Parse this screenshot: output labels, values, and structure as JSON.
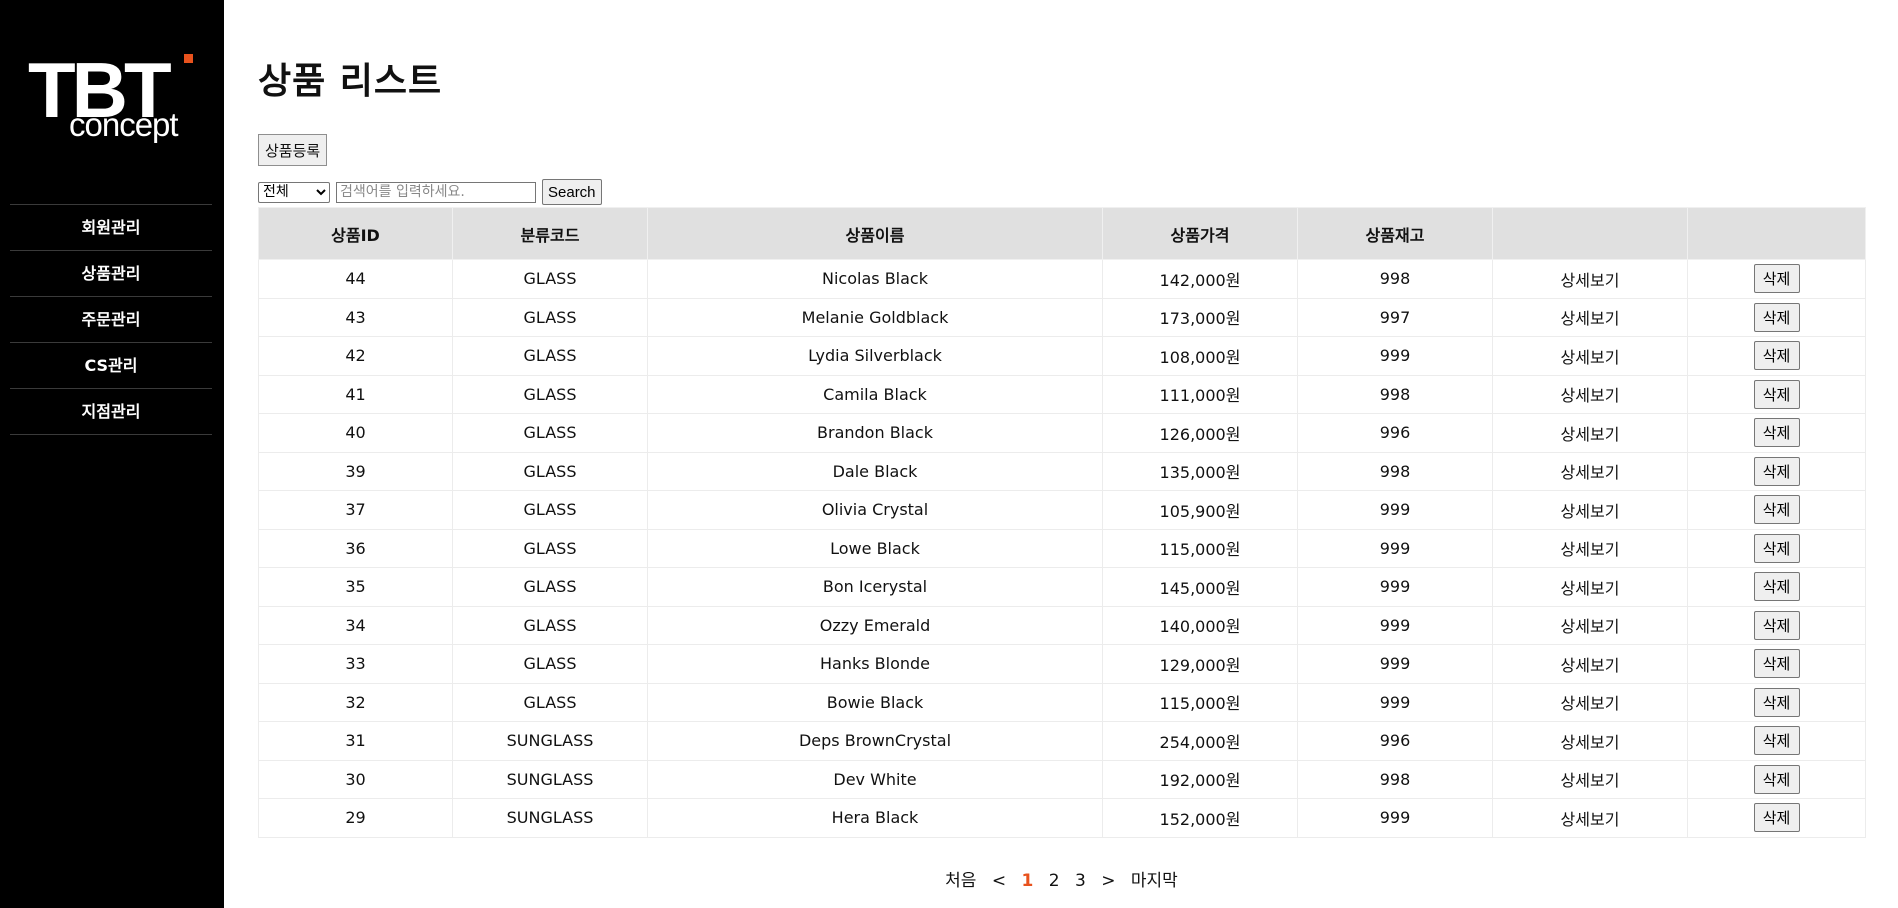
{
  "logo": {
    "main": "TBT",
    "sub": "concept",
    "accent": "#e8521d"
  },
  "nav": [
    "회원관리",
    "상품관리",
    "주문관리",
    "CS관리",
    "지점관리"
  ],
  "page_title": "상품 리스트",
  "add_button": "상품등록",
  "search": {
    "selected": "전체",
    "placeholder": "검색어를 입력하세요.",
    "button": "Search"
  },
  "table": {
    "headers": [
      "상품ID",
      "분류코드",
      "상품이름",
      "상품가격",
      "상품재고",
      "",
      ""
    ],
    "detail_label": "상세보기",
    "delete_label": "삭제",
    "rows": [
      {
        "id": "44",
        "code": "GLASS",
        "name": "Nicolas Black",
        "price": "142,000원",
        "stock": "998"
      },
      {
        "id": "43",
        "code": "GLASS",
        "name": "Melanie Goldblack",
        "price": "173,000원",
        "stock": "997"
      },
      {
        "id": "42",
        "code": "GLASS",
        "name": "Lydia Silverblack",
        "price": "108,000원",
        "stock": "999"
      },
      {
        "id": "41",
        "code": "GLASS",
        "name": "Camila Black",
        "price": "111,000원",
        "stock": "998"
      },
      {
        "id": "40",
        "code": "GLASS",
        "name": "Brandon Black",
        "price": "126,000원",
        "stock": "996"
      },
      {
        "id": "39",
        "code": "GLASS",
        "name": "Dale Black",
        "price": "135,000원",
        "stock": "998"
      },
      {
        "id": "37",
        "code": "GLASS",
        "name": "Olivia Crystal",
        "price": "105,900원",
        "stock": "999"
      },
      {
        "id": "36",
        "code": "GLASS",
        "name": "Lowe Black",
        "price": "115,000원",
        "stock": "999"
      },
      {
        "id": "35",
        "code": "GLASS",
        "name": "Bon Icerystal",
        "price": "145,000원",
        "stock": "999"
      },
      {
        "id": "34",
        "code": "GLASS",
        "name": "Ozzy Emerald",
        "price": "140,000원",
        "stock": "999"
      },
      {
        "id": "33",
        "code": "GLASS",
        "name": "Hanks Blonde",
        "price": "129,000원",
        "stock": "999"
      },
      {
        "id": "32",
        "code": "GLASS",
        "name": "Bowie Black",
        "price": "115,000원",
        "stock": "999"
      },
      {
        "id": "31",
        "code": "SUNGLASS",
        "name": "Deps BrownCrystal",
        "price": "254,000원",
        "stock": "996"
      },
      {
        "id": "30",
        "code": "SUNGLASS",
        "name": "Dev White",
        "price": "192,000원",
        "stock": "998"
      },
      {
        "id": "29",
        "code": "SUNGLASS",
        "name": "Hera Black",
        "price": "152,000원",
        "stock": "999"
      }
    ]
  },
  "pager": {
    "first": "처음",
    "prev": "<",
    "pages": [
      "1",
      "2",
      "3"
    ],
    "current": "1",
    "next": ">",
    "last": "마지막"
  }
}
